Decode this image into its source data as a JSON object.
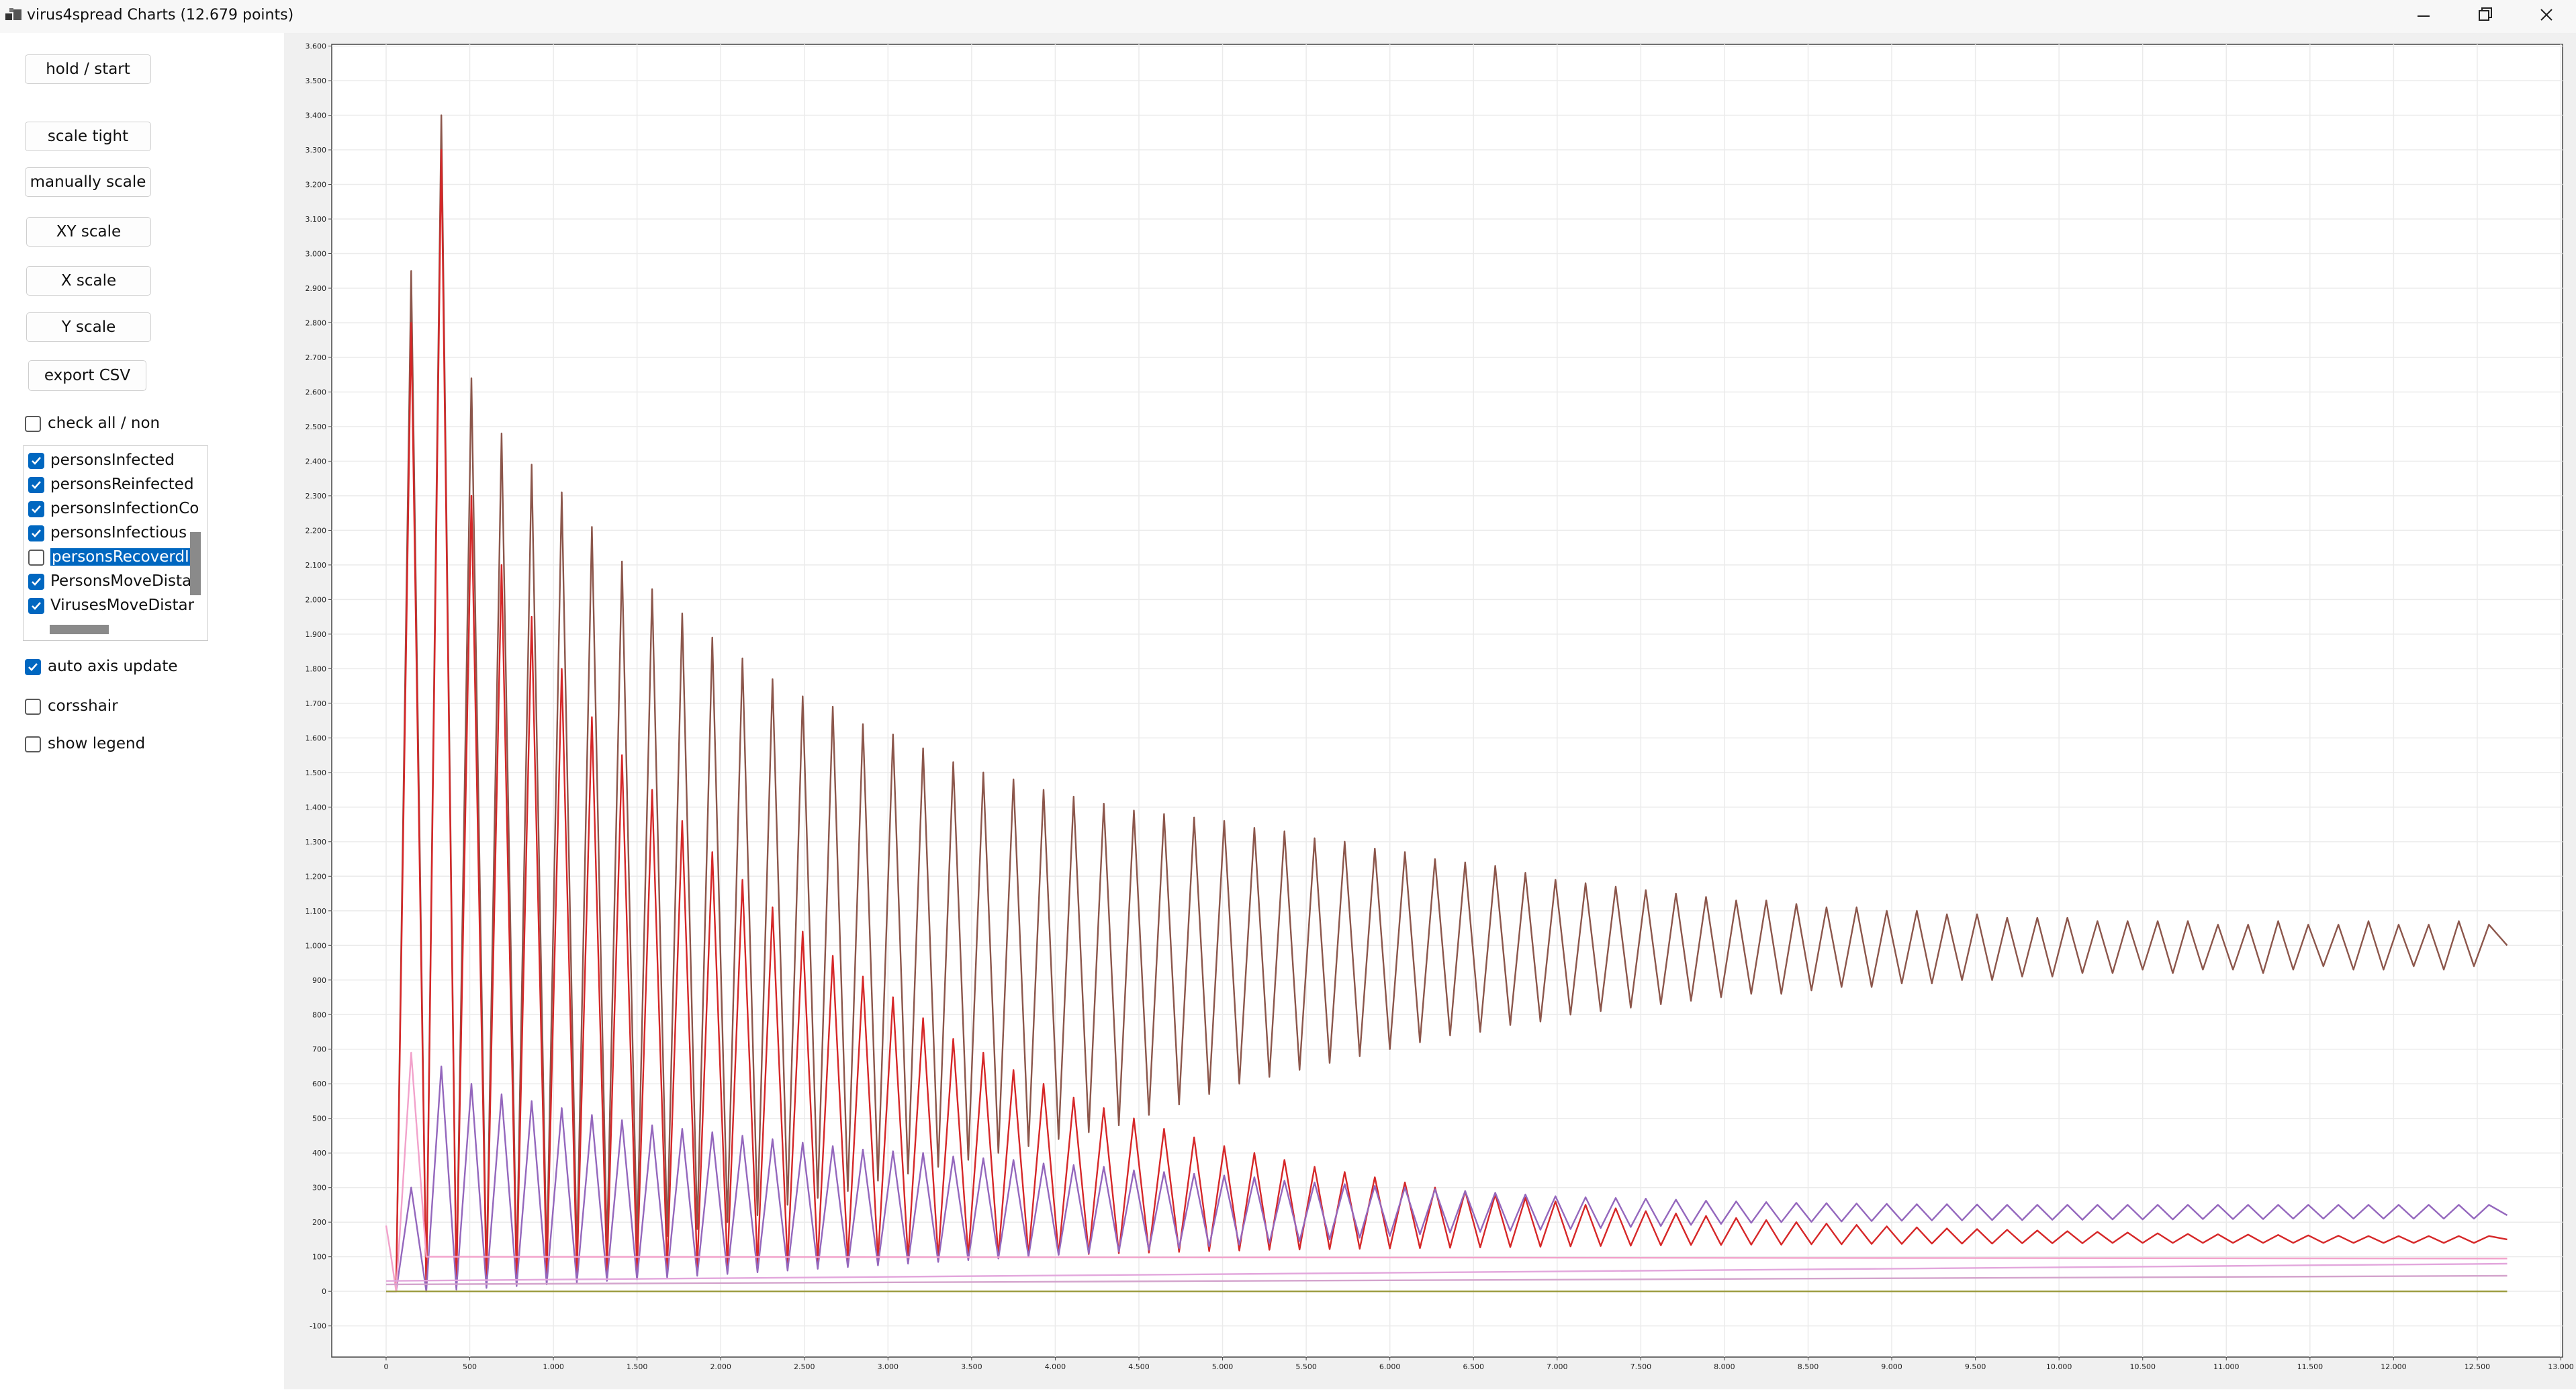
{
  "window": {
    "title": "virus4spread Charts (12.679 points)"
  },
  "controls": {
    "buttons": [
      "hold / start",
      "scale tight",
      "manually scale",
      "XY scale",
      "X scale",
      "Y scale",
      "export CSV"
    ],
    "check_all": {
      "label": "check all / non",
      "checked": false
    },
    "series_list": [
      {
        "label": "personsInfected",
        "checked": true
      },
      {
        "label": "personsReinfected",
        "checked": true
      },
      {
        "label": "personsInfectionCo",
        "checked": true
      },
      {
        "label": "personsInfectious",
        "checked": true
      },
      {
        "label": "personsRecoverdIn",
        "checked": false,
        "selected": true
      },
      {
        "label": "PersonsMoveDistar",
        "checked": true
      },
      {
        "label": "VirusesMoveDistar",
        "checked": true
      }
    ],
    "options": [
      {
        "label": "auto axis update",
        "checked": true
      },
      {
        "label": "corsshair",
        "checked": false
      },
      {
        "label": "show legend",
        "checked": false
      }
    ]
  },
  "chart_data": {
    "type": "line",
    "grid": true,
    "xlim": [
      -325,
      13010
    ],
    "ylim": [
      -190,
      3605
    ],
    "xticks": [
      0,
      500,
      {
        "value": 1000,
        "label": "1.000"
      },
      {
        "value": 1500,
        "label": "1.500"
      },
      {
        "value": 2000,
        "label": "2.000"
      },
      {
        "value": 2500,
        "label": "2.500"
      },
      {
        "value": 3000,
        "label": "3.000"
      },
      {
        "value": 3500,
        "label": "3.500"
      },
      {
        "value": 4000,
        "label": "4.000"
      },
      {
        "value": 4500,
        "label": "4.500"
      },
      {
        "value": 5000,
        "label": "5.000"
      },
      {
        "value": 5500,
        "label": "5.500"
      },
      {
        "value": 6000,
        "label": "6.000"
      },
      {
        "value": 6500,
        "label": "6.500"
      },
      {
        "value": 7000,
        "label": "7.000"
      },
      {
        "value": 7500,
        "label": "7.500"
      },
      {
        "value": 8000,
        "label": "8.000"
      },
      {
        "value": 8500,
        "label": "8.500"
      },
      {
        "value": 9000,
        "label": "9.000"
      },
      {
        "value": 9500,
        "label": "9.500"
      },
      {
        "value": 10000,
        "label": "10.000"
      },
      {
        "value": 10500,
        "label": "10.500"
      },
      {
        "value": 11000,
        "label": "11.000"
      },
      {
        "value": 11500,
        "label": "11.500"
      },
      {
        "value": 12000,
        "label": "12.000"
      },
      {
        "value": 12500,
        "label": "12.500"
      },
      {
        "value": 13000,
        "label": "13.000"
      }
    ],
    "yticks": [
      -100,
      0,
      100,
      200,
      300,
      400,
      500,
      600,
      700,
      800,
      900,
      {
        "value": 1000,
        "label": "1.000"
      },
      {
        "value": 1100,
        "label": "1.100"
      },
      {
        "value": 1200,
        "label": "1.200"
      },
      {
        "value": 1300,
        "label": "1.300"
      },
      {
        "value": 1400,
        "label": "1.400"
      },
      {
        "value": 1500,
        "label": "1.500"
      },
      {
        "value": 1600,
        "label": "1.600"
      },
      {
        "value": 1700,
        "label": "1.700"
      },
      {
        "value": 1800,
        "label": "1.800"
      },
      {
        "value": 1900,
        "label": "1.900"
      },
      {
        "value": 2000,
        "label": "2.000"
      },
      {
        "value": 2100,
        "label": "2.100"
      },
      {
        "value": 2200,
        "label": "2.200"
      },
      {
        "value": 2300,
        "label": "2.300"
      },
      {
        "value": 2400,
        "label": "2.400"
      },
      {
        "value": 2500,
        "label": "2.500"
      },
      {
        "value": 2600,
        "label": "2.600"
      },
      {
        "value": 2700,
        "label": "2.700"
      },
      {
        "value": 2800,
        "label": "2.800"
      },
      {
        "value": 2900,
        "label": "2.900"
      },
      {
        "value": 3000,
        "label": "3.000"
      },
      {
        "value": 3100,
        "label": "3.100"
      },
      {
        "value": 3200,
        "label": "3.200"
      },
      {
        "value": 3300,
        "label": "3.300"
      },
      {
        "value": 3400,
        "label": "3.400"
      },
      {
        "value": 3500,
        "label": "3.500"
      },
      {
        "value": 3600,
        "label": "3.600"
      }
    ],
    "x": [
      0,
      60,
      150,
      240,
      330,
      420,
      510,
      600,
      690,
      780,
      870,
      960,
      1050,
      1140,
      1230,
      1320,
      1410,
      1500,
      1590,
      1680,
      1770,
      1860,
      1950,
      2040,
      2130,
      2220,
      2310,
      2400,
      2490,
      2580,
      2670,
      2760,
      2850,
      2940,
      3030,
      3120,
      3210,
      3300,
      3390,
      3480,
      3570,
      3660,
      3750,
      3840,
      3930,
      4020,
      4110,
      4200,
      4290,
      4380,
      4470,
      4560,
      4650,
      4740,
      4830,
      4920,
      5010,
      5100,
      5190,
      5280,
      5370,
      5460,
      5550,
      5640,
      5730,
      5820,
      5910,
      6000,
      6090,
      6180,
      6270,
      6360,
      6450,
      6540,
      6630,
      6720,
      6810,
      6900,
      6990,
      7080,
      7170,
      7260,
      7350,
      7440,
      7530,
      7620,
      7710,
      7800,
      7890,
      7980,
      8070,
      8160,
      8250,
      8340,
      8430,
      8520,
      8610,
      8700,
      8790,
      8880,
      8970,
      9060,
      9150,
      9240,
      9330,
      9420,
      9510,
      9600,
      9690,
      9780,
      9870,
      9960,
      10050,
      10140,
      10230,
      10320,
      10410,
      10500,
      10590,
      10680,
      10770,
      10860,
      10950,
      11040,
      11130,
      11220,
      11310,
      11400,
      11490,
      11580,
      11670,
      11760,
      11850,
      11940,
      12030,
      12120,
      12210,
      12300,
      12390,
      12480,
      12570,
      12679
    ],
    "series": [
      {
        "color": "#8c564b",
        "values": [
          0,
          0,
          2950,
          10,
          3400,
          20,
          2640,
          40,
          2480,
          60,
          2390,
          80,
          2310,
          100,
          2210,
          120,
          2110,
          140,
          2030,
          160,
          1960,
          180,
          1890,
          200,
          1830,
          220,
          1770,
          250,
          1720,
          270,
          1690,
          290,
          1640,
          320,
          1610,
          340,
          1570,
          360,
          1530,
          380,
          1500,
          400,
          1480,
          420,
          1450,
          440,
          1430,
          460,
          1410,
          480,
          1390,
          510,
          1380,
          540,
          1370,
          570,
          1360,
          600,
          1340,
          620,
          1330,
          640,
          1310,
          660,
          1300,
          680,
          1280,
          700,
          1270,
          720,
          1250,
          740,
          1240,
          750,
          1230,
          770,
          1210,
          780,
          1190,
          800,
          1180,
          810,
          1170,
          820,
          1160,
          830,
          1150,
          840,
          1140,
          850,
          1130,
          860,
          1130,
          860,
          1120,
          870,
          1110,
          880,
          1110,
          880,
          1100,
          890,
          1100,
          890,
          1090,
          900,
          1090,
          900,
          1080,
          910,
          1080,
          910,
          1080,
          920,
          1070,
          920,
          1070,
          930,
          1070,
          920,
          1070,
          930,
          1060,
          930,
          1060,
          920,
          1070,
          930,
          1060,
          940,
          1060,
          930,
          1070,
          930,
          1060,
          940,
          1060,
          930,
          1070,
          940,
          1060,
          1000
        ]
      },
      {
        "color": "#d62728",
        "values": [
          0,
          0,
          2800,
          0,
          3300,
          10,
          2300,
          20,
          2100,
          30,
          1950,
          40,
          1800,
          45,
          1660,
          50,
          1550,
          55,
          1450,
          60,
          1360,
          65,
          1270,
          70,
          1190,
          75,
          1110,
          80,
          1040,
          85,
          970,
          90,
          910,
          92,
          850,
          95,
          790,
          97,
          730,
          100,
          690,
          102,
          640,
          104,
          600,
          106,
          560,
          108,
          530,
          110,
          500,
          112,
          470,
          114,
          445,
          116,
          420,
          118,
          400,
          120,
          380,
          121,
          360,
          122,
          345,
          123,
          330,
          124,
          315,
          125,
          300,
          126,
          290,
          127,
          280,
          128,
          270,
          129,
          260,
          130,
          250,
          131,
          240,
          132,
          232,
          133,
          225,
          134,
          218,
          134,
          212,
          135,
          206,
          135,
          200,
          136,
          196,
          136,
          192,
          137,
          188,
          137,
          185,
          138,
          182,
          138,
          180,
          138,
          178,
          139,
          176,
          139,
          174,
          139,
          172,
          140,
          170,
          140,
          168,
          140,
          166,
          140,
          165,
          140,
          164,
          140,
          163,
          140,
          162,
          140,
          161,
          140,
          160,
          140,
          160,
          140,
          160,
          140,
          160,
          140,
          160,
          150
        ]
      },
      {
        "color": "#9467bd",
        "values": [
          0,
          0,
          300,
          0,
          650,
          5,
          600,
          10,
          570,
          15,
          550,
          20,
          530,
          25,
          510,
          30,
          495,
          35,
          480,
          40,
          470,
          45,
          460,
          50,
          450,
          55,
          440,
          60,
          430,
          65,
          420,
          70,
          410,
          75,
          405,
          80,
          400,
          85,
          390,
          90,
          385,
          95,
          380,
          100,
          370,
          105,
          365,
          110,
          360,
          115,
          350,
          120,
          345,
          125,
          340,
          130,
          335,
          135,
          330,
          140,
          320,
          145,
          315,
          150,
          310,
          155,
          305,
          160,
          300,
          165,
          295,
          170,
          290,
          172,
          285,
          175,
          280,
          178,
          275,
          180,
          272,
          183,
          270,
          186,
          268,
          189,
          265,
          192,
          262,
          195,
          260,
          198,
          258,
          200,
          256,
          201,
          255,
          202,
          254,
          203,
          253,
          204,
          252,
          205,
          252,
          205,
          251,
          206,
          250,
          206,
          250,
          207,
          250,
          207,
          250,
          208,
          250,
          208,
          250,
          208,
          250,
          209,
          250,
          209,
          250,
          209,
          250,
          210,
          250,
          210,
          250,
          210,
          250,
          210,
          250,
          210,
          250,
          210,
          250,
          210,
          250,
          220
        ]
      },
      {
        "color": "#f2a2cb",
        "x": [
          0,
          30,
          60,
          150,
          240,
          400,
          12679
        ],
        "values": [
          190,
          100,
          0,
          690,
          100,
          100,
          95
        ]
      },
      {
        "color": "#e2a6dc",
        "x": [
          0,
          12679
        ],
        "values": [
          30,
          80
        ]
      },
      {
        "color": "#d3a3cc",
        "x": [
          0,
          12679
        ],
        "values": [
          20,
          45
        ]
      },
      {
        "color": "#9a9a3c",
        "x": [
          0,
          12679
        ],
        "values": [
          0,
          0
        ]
      }
    ]
  }
}
